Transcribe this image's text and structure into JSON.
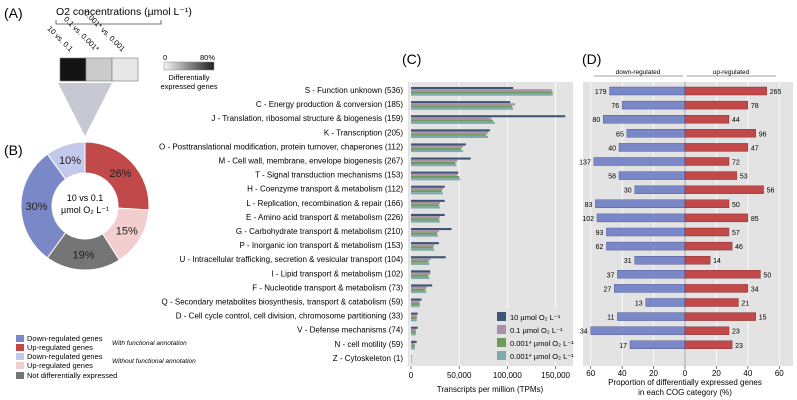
{
  "panel_labels": {
    "a": "(A)",
    "b": "(B)",
    "c": "(C)",
    "d": "(D)"
  },
  "panel_a": {
    "title": "O2 concentrations (µmol L⁻¹)",
    "comparisons": [
      "10 vs. 0.1",
      "0.1 vs. 0.001*",
      "0.001* vs. 0.001"
    ],
    "heat_values": [
      80,
      15,
      5
    ],
    "scale_min": "0",
    "scale_max": "80%",
    "scale_label_1": "Differentially",
    "scale_label_2": "expressed genes"
  },
  "panel_b": {
    "center_line1": "10 vs 0.1",
    "center_line2": "µmol O₂ L⁻¹",
    "legend": {
      "down_func": "Down-regulated genes",
      "up_func": "Up-regulated genes",
      "with_func": "With functional annotation",
      "down_nofunc": "Down-regulated genes",
      "up_nofunc": "Up-regulated genes",
      "without_func": "Without functional annotation",
      "not_de": "Not differentially expressed"
    }
  },
  "chart_data": [
    {
      "type": "pie",
      "title": "10 vs 0.1 µmol O2 L-1",
      "labels": [
        "Down-regulated (with functional annotation)",
        "Up-regulated (with functional annotation)",
        "Up-regulated (without functional annotation)",
        "Not differentially expressed",
        "Down-regulated (without functional annotation)"
      ],
      "values": [
        30,
        26,
        15,
        19,
        10
      ],
      "value_labels": [
        "30%",
        "26%",
        "15%",
        "19%",
        "10%"
      ],
      "colors": [
        "#7b88c8",
        "#c1494a",
        "#f2cece",
        "#757575",
        "#c3c9ea"
      ]
    },
    {
      "type": "bar",
      "orientation": "horizontal",
      "categories": [
        "S - Function unknown (536)",
        "C - Energy production & conversion (185)",
        "J - Translation, ribosomal structure & biogenesis (159)",
        "K - Transcription (205)",
        "O - Posttranslational modification, protein turnover, chaperones (112)",
        "M - Cell wall, membrane, envelope biogenesis (267)",
        "T - Signal transduction mechanisms (153)",
        "H - Coenzyme transport & metabolism (112)",
        "L - Replication, recombination & repair (166)",
        "E - Amino acid transport & metabolism (226)",
        "G - Carbohydrate transport & metabolism (210)",
        "P - Inorganic ion transport & metabolism (153)",
        "U - Intracellular trafficking, secretion & vesicular transport (104)",
        "I - Lipid transport & metabolism (102)",
        "F - Nucleotide transport & metabolism (73)",
        "Q - Secondary metabolites biosynthesis, transport & catabolism (59)",
        "D - Cell cycle control, cell division, chromosome partitioning (33)",
        "V - Defense mechanisms (74)",
        "N - cell motility (59)",
        "Z - Cytoskeleton (1)"
      ],
      "series": [
        {
          "name": "10 µmol O2 L-1",
          "color": "#3f5577",
          "values": [
            106000,
            103000,
            160000,
            82000,
            57000,
            62000,
            49000,
            35000,
            35000,
            35000,
            42000,
            29000,
            36000,
            20000,
            22000,
            11000,
            7000,
            7000,
            6000,
            300
          ]
        },
        {
          "name": "0.1 µmol O2 L-1",
          "color": "#ab8fa6",
          "values": [
            146000,
            108000,
            83000,
            80000,
            54000,
            48000,
            48000,
            33000,
            30000,
            30000,
            29000,
            24000,
            20000,
            20000,
            16000,
            9000,
            6000,
            5000,
            4000,
            200
          ]
        },
        {
          "name": "0.001* µmol O2 L-1",
          "color": "#6e9a5c",
          "values": [
            147000,
            105000,
            85000,
            78000,
            52000,
            46000,
            50000,
            32000,
            29000,
            29000,
            27000,
            23000,
            18000,
            18000,
            15000,
            9000,
            6000,
            5000,
            4000,
            200
          ]
        },
        {
          "name": "0.001* µmol O2 L-1",
          "color": "#7ea9ad",
          "values": [
            147000,
            106000,
            87000,
            80000,
            54000,
            47000,
            51000,
            33000,
            30000,
            30000,
            28000,
            24000,
            19000,
            19000,
            16000,
            9000,
            6000,
            5000,
            4000,
            200
          ]
        }
      ],
      "xlabel": "Transcripts per million (TPMs)",
      "xlim": [
        0,
        165000
      ],
      "xticks": [
        "0",
        "50,000",
        "100,000",
        "150,000"
      ],
      "legend_position": "bottom-right",
      "legend_labels": [
        "10 µmol O₂ L⁻¹",
        "0.1 µmol O₂ L⁻¹",
        "0.001* µmol O₂ L⁻¹",
        "0.001* µmol O₂ L⁻¹"
      ]
    },
    {
      "type": "bar",
      "orientation": "horizontal-diverging",
      "header_left": "down-regulated",
      "header_right": "up-regulated",
      "down_percent": [
        48,
        40,
        52,
        37,
        42,
        58,
        42,
        32,
        57,
        56,
        50,
        50,
        32,
        43,
        45,
        25,
        43,
        60,
        35,
        0
      ],
      "up_percent": [
        52,
        40,
        28,
        45,
        40,
        28,
        33,
        50,
        28,
        40,
        28,
        30,
        16,
        48,
        40,
        34,
        45,
        28,
        30,
        0
      ],
      "down_counts": [
        "179",
        "76",
        "80",
        "65",
        "40",
        "137",
        "58",
        "30",
        "83",
        "102",
        "93",
        "62",
        "31",
        "37",
        "27",
        "13",
        "11",
        "34",
        "17",
        ""
      ],
      "up_counts": [
        "265",
        "78",
        "44",
        "96",
        "47",
        "72",
        "53",
        "56",
        "50",
        "85",
        "57",
        "46",
        "14",
        "50",
        "34",
        "21",
        "15",
        "23",
        "23",
        ""
      ],
      "down_color": "#7b88c8",
      "up_color": "#c1494a",
      "xlim": [
        -70,
        70
      ],
      "xticks": [
        "60",
        "40",
        "20",
        "0",
        "20",
        "40",
        "60"
      ],
      "xlabel_1": "Proportion of differentially expressed genes",
      "xlabel_2": "in each COG category (%)"
    }
  ]
}
